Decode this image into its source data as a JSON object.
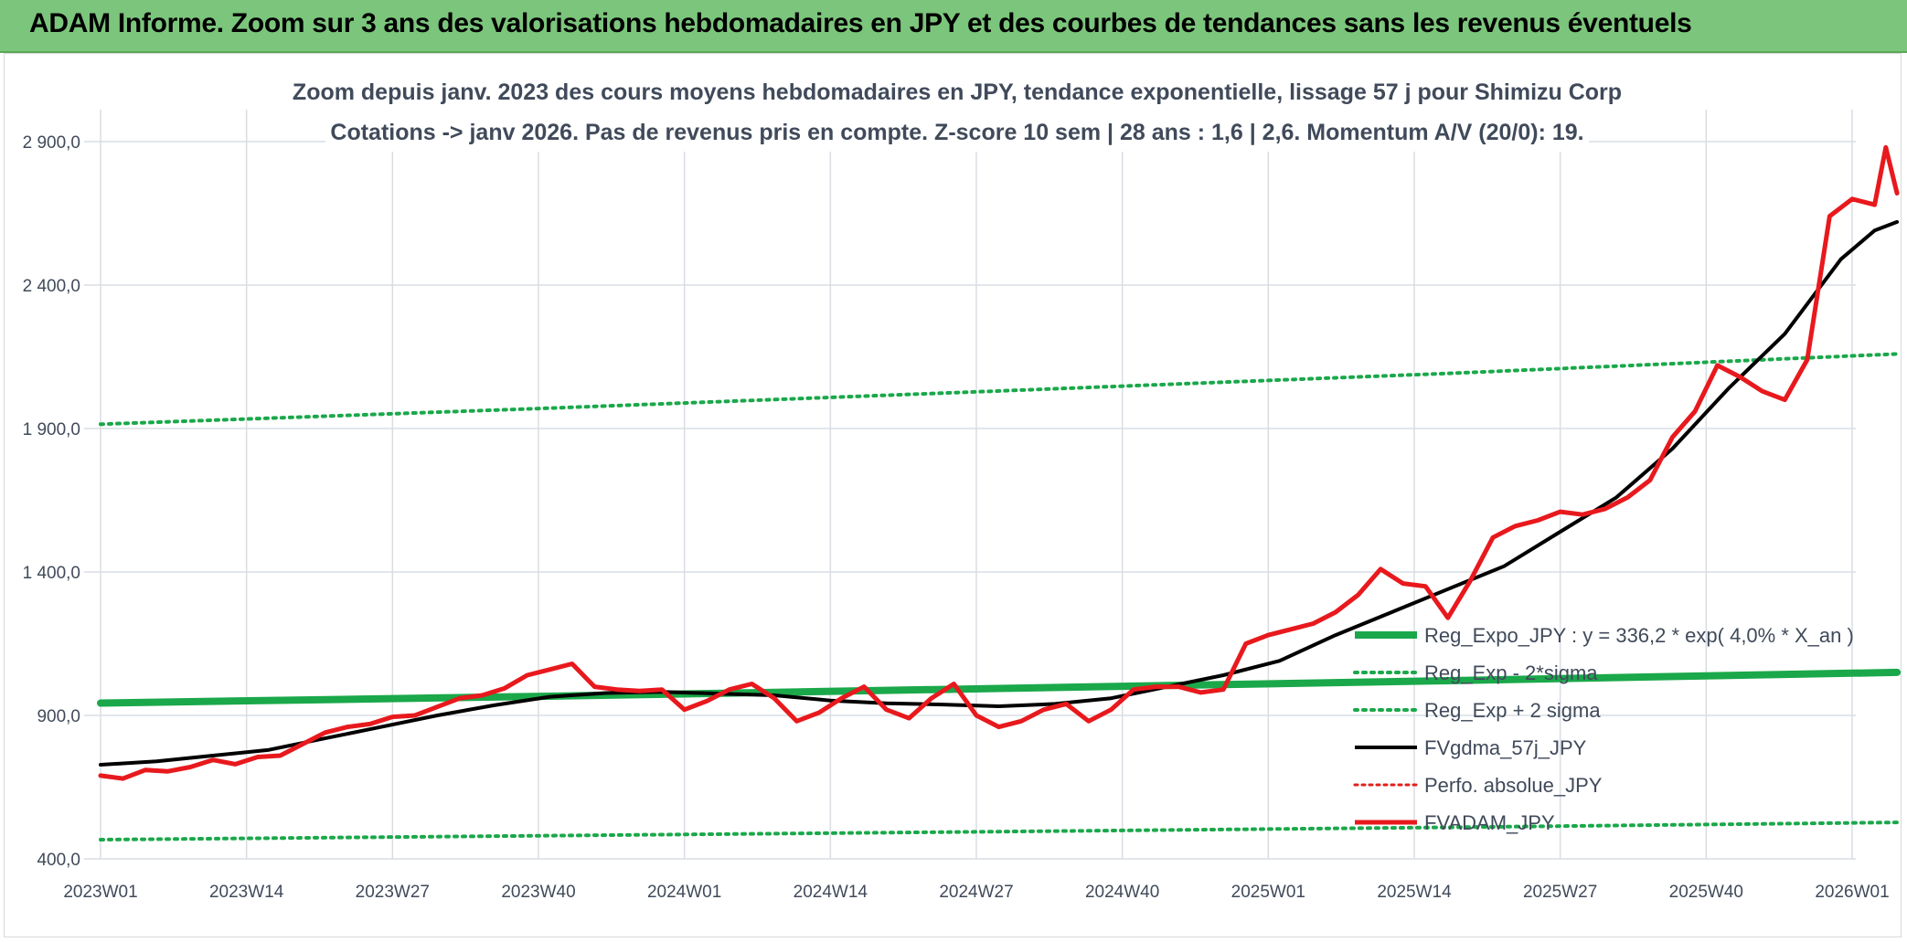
{
  "banner": {
    "title": "ADAM Informe. Zoom sur 3 ans des valorisations hebdomadaires en JPY et des courbes de tendances sans les revenus éventuels"
  },
  "colors": {
    "banner_bg": "#7cc57c",
    "reg_expo": "#1aa84a",
    "sigma": "#1aa84a",
    "fvgdma": "#000000",
    "perfo": "#e0201b",
    "fvadam": "#e8191d",
    "grid": "#d9dde3"
  },
  "chart_data": {
    "type": "line",
    "title_line1": "Zoom depuis janv. 2023 des cours moyens hebdomadaires en JPY, tendance exponentielle, lissage 57 j pour Shimizu Corp",
    "title_line2": "Cotations -> janv 2026. Pas de revenus pris en compte. Z-score 10 sem | 28 ans : 1,6 | 2,6. Momentum A/V (20/0): 19.",
    "x_tick_labels": [
      "2023W01",
      "2023W14",
      "2023W27",
      "2023W40",
      "2024W01",
      "2024W14",
      "2024W27",
      "2024W40",
      "2025W01",
      "2025W14",
      "2025W27",
      "2025W40",
      "2026W01"
    ],
    "weeks_total": 161,
    "y_tick_values": [
      400,
      900,
      1400,
      1900,
      2400,
      2900
    ],
    "y_tick_labels": [
      "400,0",
      "900,0",
      "1 400,0",
      "1 900,0",
      "2 400,0",
      "2 900,0"
    ],
    "ylim": [
      400,
      2900
    ],
    "grid": true,
    "legend_position": "right",
    "series": [
      {
        "name": "Reg_Expo_JPY : y = 336,2 * exp( 4,0% *  X_an )",
        "style": "solid-thick",
        "x": [
          0,
          40,
          80,
          120,
          160
        ],
        "y": [
          943,
          967,
          994,
          1021,
          1050
        ]
      },
      {
        "name": "Reg_Exp - 2*sigma",
        "style": "dotted",
        "x": [
          0,
          40,
          80,
          120,
          160
        ],
        "y": [
          467,
          481,
          495,
          510,
          527
        ]
      },
      {
        "name": "Reg_Exp + 2 sigma",
        "style": "dotted",
        "x": [
          0,
          40,
          80,
          120,
          160
        ],
        "y": [
          1915,
          1971,
          2031,
          2092,
          2160
        ]
      },
      {
        "name": "FVgdma_57j_JPY",
        "style": "solid",
        "x": [
          0,
          5,
          10,
          15,
          20,
          25,
          30,
          35,
          40,
          45,
          50,
          55,
          60,
          65,
          70,
          75,
          80,
          85,
          90,
          95,
          100,
          105,
          110,
          115,
          120,
          125,
          130,
          135,
          140,
          145,
          150,
          155,
          158,
          160
        ],
        "y": [
          728,
          740,
          760,
          780,
          820,
          860,
          900,
          935,
          965,
          978,
          982,
          976,
          970,
          952,
          942,
          938,
          932,
          940,
          960,
          1000,
          1040,
          1090,
          1180,
          1260,
          1340,
          1420,
          1540,
          1660,
          1830,
          2040,
          2230,
          2490,
          2590,
          2620
        ]
      },
      {
        "name": "Perfo. absolue_JPY",
        "style": "dotted-red",
        "x": [],
        "y": []
      },
      {
        "name": "FVADAM_JPY",
        "style": "solid-red",
        "x": [
          0,
          2,
          4,
          6,
          8,
          10,
          12,
          14,
          16,
          18,
          20,
          22,
          24,
          26,
          28,
          30,
          32,
          34,
          36,
          38,
          40,
          42,
          44,
          46,
          48,
          50,
          52,
          54,
          56,
          58,
          60,
          62,
          64,
          66,
          68,
          70,
          72,
          74,
          76,
          78,
          80,
          82,
          84,
          86,
          88,
          90,
          92,
          94,
          96,
          98,
          100,
          102,
          104,
          106,
          108,
          110,
          112,
          114,
          116,
          118,
          120,
          122,
          124,
          126,
          128,
          130,
          132,
          134,
          136,
          138,
          140,
          142,
          144,
          146,
          148,
          150,
          152,
          154,
          156,
          158,
          159,
          160
        ],
        "y": [
          690,
          680,
          710,
          705,
          720,
          745,
          730,
          755,
          760,
          800,
          840,
          860,
          870,
          895,
          900,
          930,
          960,
          970,
          995,
          1040,
          1060,
          1080,
          1000,
          990,
          985,
          990,
          920,
          950,
          990,
          1010,
          960,
          880,
          910,
          960,
          1000,
          920,
          890,
          960,
          1010,
          900,
          860,
          880,
          920,
          940,
          880,
          920,
          990,
          1000,
          1000,
          980,
          990,
          1150,
          1180,
          1200,
          1220,
          1260,
          1320,
          1410,
          1360,
          1350,
          1240,
          1370,
          1520,
          1560,
          1580,
          1610,
          1600,
          1620,
          1660,
          1720,
          1870,
          1960,
          2120,
          2080,
          2030,
          2000,
          2140,
          2640,
          2700,
          2680,
          2880,
          2720
        ]
      }
    ]
  }
}
